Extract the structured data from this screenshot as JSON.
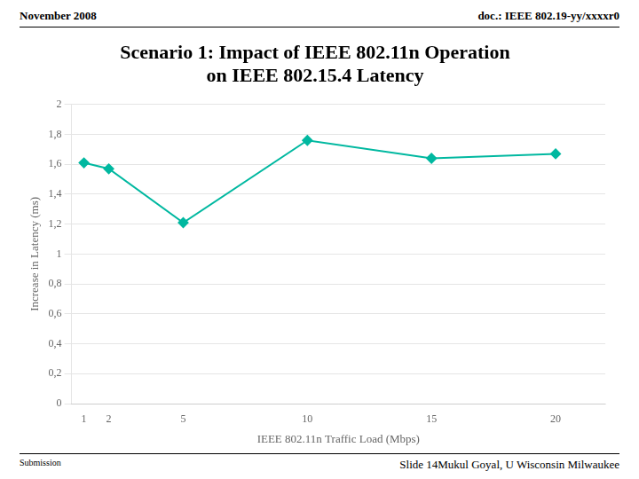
{
  "chart_data": {
    "type": "line",
    "title": "Scenario 1: Impact of IEEE 802.11n Operation\non IEEE 802.15.4 Latency",
    "annotations": [
      "November 2008",
      "doc.: IEEE 802.19-yy/xxxxr0",
      "Submission",
      "Slide 14Mukul Goyal, U Wisconsin Milwaukee"
    ],
    "x_label": "IEEE 802.11n Traffic Load (Mbps)",
    "y_label": "Increase in Latency (ms)",
    "x": [
      1,
      2,
      5,
      10,
      15,
      20
    ],
    "values": [
      1.61,
      1.57,
      1.21,
      1.76,
      1.64,
      1.67
    ],
    "color": "#00B8A0",
    "marker": "diamond",
    "xlim": [
      0.5,
      22
    ],
    "xticks": [
      1,
      2,
      5,
      10,
      15,
      20
    ],
    "ylim": [
      0,
      2.0
    ],
    "yticks": [
      0,
      {
        "value": 0.2,
        "label": "0,2"
      },
      {
        "value": 0.4,
        "label": "0,4"
      },
      {
        "value": 0.6,
        "label": "0,6"
      },
      {
        "value": 0.8,
        "label": "0,8"
      },
      1,
      {
        "value": 1.2,
        "label": "1,2"
      },
      {
        "value": 1.4,
        "label": "1,4"
      },
      {
        "value": 1.6,
        "label": "1,6"
      },
      {
        "value": 1.8,
        "label": "1,8"
      },
      2
    ],
    "grid": "y",
    "legend": false
  }
}
